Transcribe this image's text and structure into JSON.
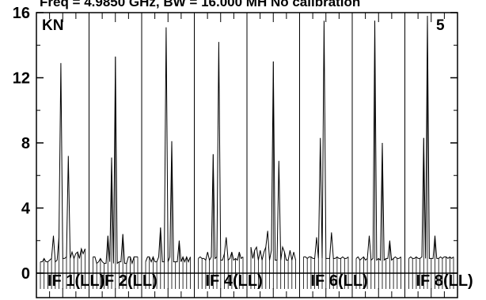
{
  "chart_data": {
    "type": "line",
    "title": "Freq = 4.9850 GHz, BW = 16.000 MH   No calibration",
    "corner_left": "KN",
    "corner_right": "5",
    "xlabel": "",
    "ylabel": "",
    "ylim": [
      0,
      16
    ],
    "y_ticks": [
      0,
      4,
      8,
      12,
      16
    ],
    "grid": false,
    "legend": "none",
    "line_color": "#000000",
    "panel_labels": [
      "IF 1(LL)",
      "IF 2(LL)",
      "IF 4(LL)",
      "IF 6(LL)",
      "IF 8(LL)"
    ],
    "panel_label_panels": [
      0,
      1,
      3,
      5,
      7
    ],
    "panels": [
      [
        0.7,
        0.7,
        0.9,
        0.7,
        0.7,
        0.8,
        0.9,
        2.3,
        0.7,
        0.8,
        2.2,
        12.9,
        0.9,
        0.9,
        1.0,
        7.2,
        0.9,
        1.3,
        0.9,
        1.2,
        1.3,
        0.9,
        1.5,
        1.2,
        1.5
      ],
      [
        1.0,
        1.0,
        0.6,
        0.7,
        0.9,
        0.7,
        0.6,
        0.6,
        2.3,
        0.7,
        7.1,
        0.6,
        13.3,
        0.6,
        0.7,
        0.7,
        2.4,
        0.6,
        0.6,
        1.0,
        1.0,
        0.6,
        1.0,
        1.0,
        1.0
      ],
      [
        0.7,
        1.0,
        1.0,
        0.7,
        1.0,
        0.7,
        0.7,
        1.0,
        2.8,
        0.7,
        0.7,
        15.1,
        0.7,
        1.0,
        8.1,
        0.7,
        0.7,
        0.7,
        2.0,
        0.7,
        1.0,
        0.7,
        1.0,
        0.7,
        1.0
      ],
      [
        0.9,
        1.0,
        0.9,
        0.9,
        0.8,
        1.3,
        0.8,
        1.0,
        7.3,
        0.9,
        1.0,
        14.2,
        0.8,
        0.8,
        1.2,
        2.2,
        0.8,
        0.9,
        1.3,
        0.8,
        0.9,
        0.8,
        1.3,
        0.9,
        1.0
      ],
      [
        1.6,
        0.9,
        1.4,
        1.6,
        0.8,
        1.4,
        0.8,
        1.3,
        1.6,
        2.6,
        0.8,
        1.4,
        13.0,
        0.8,
        0.8,
        6.9,
        0.8,
        1.6,
        1.3,
        0.8,
        0.8,
        1.4,
        0.8,
        1.3,
        0.8
      ],
      [
        1.0,
        1.0,
        0.9,
        1.0,
        1.0,
        0.9,
        0.9,
        2.2,
        0.9,
        8.3,
        0.9,
        15.5,
        0.9,
        0.9,
        0.9,
        2.5,
        0.9,
        0.9,
        1.0,
        0.9,
        0.9,
        1.0,
        0.9,
        0.9,
        1.0
      ],
      [
        0.9,
        1.0,
        0.8,
        0.9,
        1.0,
        0.8,
        0.9,
        2.3,
        0.8,
        0.9,
        15.5,
        0.8,
        0.9,
        0.8,
        8.0,
        0.8,
        0.9,
        0.9,
        2.0,
        0.8,
        0.9,
        1.0,
        0.9,
        0.9,
        1.0
      ],
      [
        0.9,
        1.0,
        0.9,
        0.9,
        1.0,
        0.9,
        0.9,
        1.0,
        8.3,
        0.9,
        15.8,
        0.9,
        0.9,
        0.9,
        2.3,
        0.9,
        0.9,
        1.0,
        0.9,
        1.0,
        1.0,
        0.9,
        1.0,
        0.9,
        1.0
      ]
    ]
  }
}
